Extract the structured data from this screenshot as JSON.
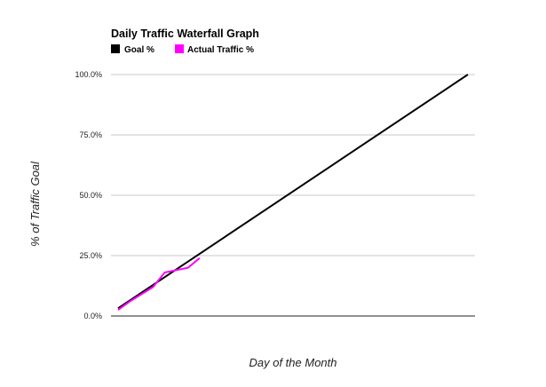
{
  "chart_data": {
    "type": "line",
    "title": "Daily Traffic Waterfall Graph",
    "xlabel": "Day of the Month",
    "ylabel": "% of Traffic Goal",
    "ylim": [
      0,
      100
    ],
    "xlim": [
      1,
      31
    ],
    "yticks": [
      0,
      25,
      50,
      75,
      100
    ],
    "ytick_labels": [
      "0.0%",
      "25.0%",
      "50.0%",
      "75.0%",
      "100.0%"
    ],
    "grid": true,
    "legend_position": "top-left",
    "series": [
      {
        "name": "Goal %",
        "color": "#000000",
        "x": [
          1,
          31
        ],
        "y": [
          3.2,
          100
        ]
      },
      {
        "name": "Actual Traffic %",
        "color": "#ff00ff",
        "x": [
          1,
          2,
          3,
          4,
          5,
          6,
          7,
          8
        ],
        "y": [
          2.5,
          6.0,
          9.0,
          12.0,
          18.0,
          19.0,
          20.0,
          24.0
        ]
      }
    ]
  }
}
